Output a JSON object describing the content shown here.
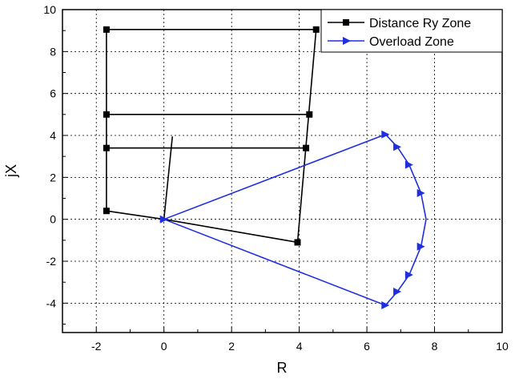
{
  "chart_data": {
    "type": "line",
    "xlabel": "R",
    "ylabel": "jX",
    "xlim": [
      -3,
      10
    ],
    "ylim": [
      -5.4,
      10
    ],
    "x_ticks": [
      -2,
      0,
      2,
      4,
      6,
      8,
      10
    ],
    "y_ticks": [
      -4,
      -2,
      0,
      2,
      4,
      6,
      8,
      10
    ],
    "x_tick_labels": [
      "-2",
      "0",
      "2",
      "4",
      "6",
      "8",
      "10"
    ],
    "y_tick_labels": [
      "-4",
      "-2",
      "0",
      "2",
      "4",
      "6",
      "8",
      "10"
    ],
    "grid": true,
    "legend_position": "top-right",
    "colors": {
      "distance": "#000000",
      "overload": "#1f2fe0"
    },
    "series": [
      {
        "name": "Distance Ry Zone",
        "marker": "square",
        "segments": [
          [
            [
              -1.7,
              9.05
            ],
            [
              4.5,
              9.05
            ]
          ],
          [
            [
              4.5,
              9.05
            ],
            [
              3.95,
              -1.1
            ]
          ],
          [
            [
              3.95,
              -1.1
            ],
            [
              0,
              0
            ],
            [
              -1.7,
              0.4
            ],
            [
              -1.7,
              9.05
            ]
          ],
          [
            [
              -1.7,
              5.0
            ],
            [
              4.3,
              5.0
            ]
          ],
          [
            [
              -1.7,
              3.4
            ],
            [
              4.2,
              3.4
            ]
          ],
          [
            [
              0,
              0
            ],
            [
              0.25,
              3.95
            ]
          ]
        ],
        "points": [
          [
            -1.7,
            9.05
          ],
          [
            4.5,
            9.05
          ],
          [
            -1.7,
            5.0
          ],
          [
            4.3,
            5.0
          ],
          [
            -1.7,
            3.4
          ],
          [
            4.2,
            3.4
          ],
          [
            -1.7,
            0.4
          ],
          [
            3.95,
            -1.1
          ]
        ]
      },
      {
        "name": "Overload Zone",
        "marker": "triangle-right",
        "segments": [
          [
            [
              0,
              0
            ],
            [
              6.55,
              4.05
            ]
          ],
          [
            [
              6.55,
              4.05
            ],
            [
              6.9,
              3.45
            ],
            [
              7.25,
              2.6
            ],
            [
              7.6,
              1.25
            ],
            [
              7.75,
              0
            ],
            [
              7.6,
              -1.3
            ],
            [
              7.25,
              -2.65
            ],
            [
              6.9,
              -3.45
            ],
            [
              6.55,
              -4.1
            ]
          ],
          [
            [
              6.55,
              -4.1
            ],
            [
              0,
              0
            ]
          ]
        ],
        "points": [
          [
            0,
            0
          ],
          [
            6.55,
            4.05
          ],
          [
            6.9,
            3.45
          ],
          [
            7.25,
            2.6
          ],
          [
            7.6,
            1.25
          ],
          [
            7.6,
            -1.3
          ],
          [
            7.25,
            -2.65
          ],
          [
            6.9,
            -3.45
          ],
          [
            6.55,
            -4.1
          ]
        ]
      }
    ]
  }
}
